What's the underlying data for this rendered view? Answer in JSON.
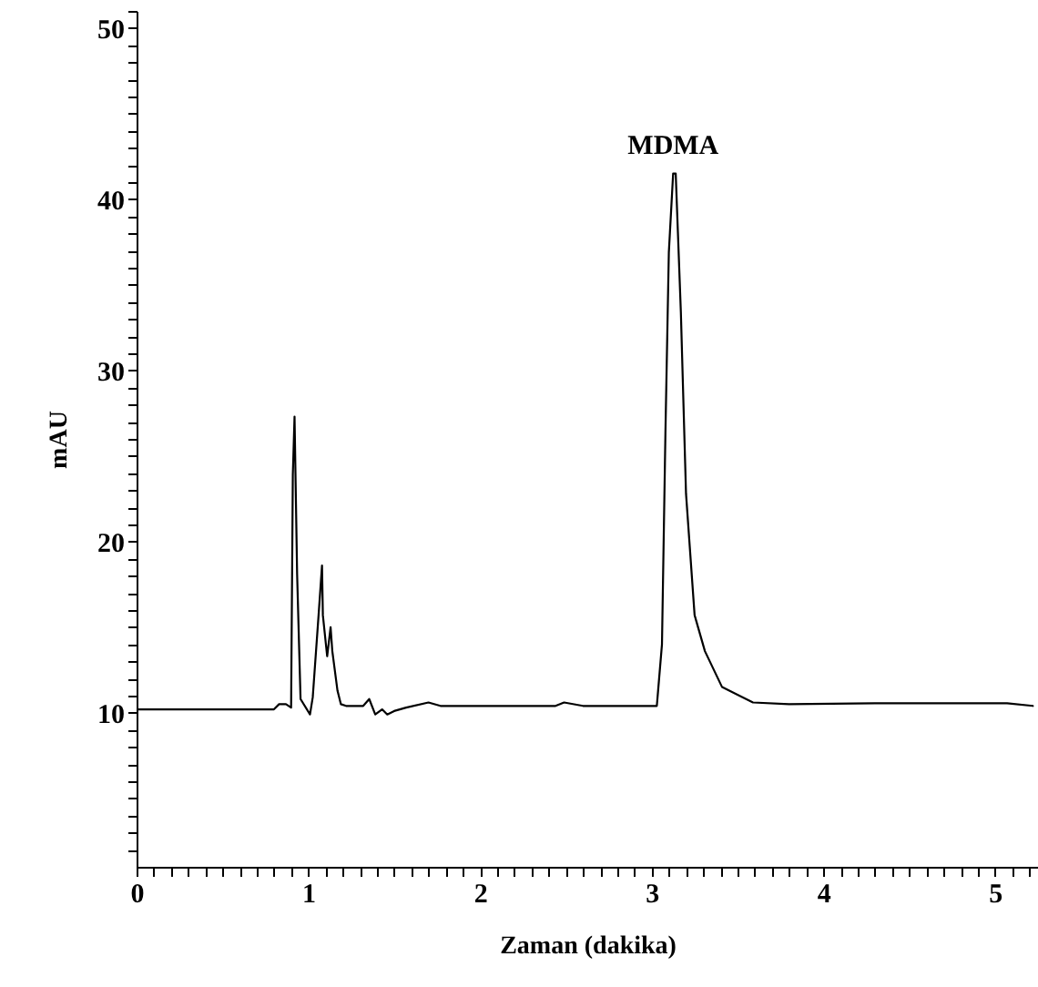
{
  "chart_data": {
    "type": "line",
    "xlabel": "Zaman (dakika)",
    "ylabel": "mAU",
    "x": [
      0,
      0.8,
      0.83,
      0.87,
      0.9,
      0.91,
      0.92,
      0.935,
      0.955,
      1.01,
      1.026,
      1.06,
      1.08,
      1.085,
      1.11,
      1.13,
      1.14,
      1.17,
      1.19,
      1.22,
      1.32,
      1.355,
      1.39,
      1.43,
      1.46,
      1.5,
      1.57,
      1.7,
      1.77,
      2.44,
      2.49,
      2.6,
      3.03,
      3.06,
      3.08,
      3.1,
      3.125,
      3.14,
      3.17,
      3.2,
      3.25,
      3.31,
      3.41,
      3.59,
      3.8,
      4.3,
      5.07,
      5.22
    ],
    "series": [
      {
        "color": "#000000",
        "values": [
          10.2,
          10.2,
          10.5,
          10.5,
          10.3,
          23.9,
          27.3,
          18.1,
          10.8,
          9.9,
          10.9,
          15.7,
          18.6,
          15.7,
          13.3,
          15.0,
          13.6,
          11.3,
          10.5,
          10.4,
          10.4,
          10.8,
          9.9,
          10.2,
          9.9,
          10.1,
          10.3,
          10.6,
          10.4,
          10.4,
          10.6,
          10.4,
          10.4,
          14.0,
          26.3,
          36.9,
          41.5,
          41.5,
          33.4,
          22.8,
          15.7,
          13.6,
          11.5,
          10.6,
          10.5,
          10.55,
          10.55,
          10.4
        ]
      }
    ],
    "annotations": [
      {
        "text": "MDMA",
        "x": 3.125,
        "y": 41.5
      }
    ],
    "xlim": [
      0,
      5.25
    ],
    "ylim": [
      1,
      51
    ],
    "xticks": [
      0,
      {
        "value": 0.1,
        "label": null
      },
      {
        "value": 0.2,
        "label": null
      },
      {
        "value": 0.3,
        "label": null
      },
      {
        "value": 0.4,
        "label": null
      },
      {
        "value": 0.5,
        "label": null
      },
      {
        "value": 0.6,
        "label": null
      },
      {
        "value": 0.7,
        "label": null
      },
      {
        "value": 0.8,
        "label": null
      },
      {
        "value": 0.9,
        "label": null
      },
      1,
      {
        "value": 1.1,
        "label": null
      },
      {
        "value": 1.2,
        "label": null
      },
      {
        "value": 1.3,
        "label": null
      },
      {
        "value": 1.4,
        "label": null
      },
      {
        "value": 1.5,
        "label": null
      },
      {
        "value": 1.6,
        "label": null
      },
      {
        "value": 1.7,
        "label": null
      },
      {
        "value": 1.8,
        "label": null
      },
      {
        "value": 1.9,
        "label": null
      },
      2,
      {
        "value": 2.1,
        "label": null
      },
      {
        "value": 2.2,
        "label": null
      },
      {
        "value": 2.3,
        "label": null
      },
      {
        "value": 2.4,
        "label": null
      },
      {
        "value": 2.5,
        "label": null
      },
      {
        "value": 2.6,
        "label": null
      },
      {
        "value": 2.7,
        "label": null
      },
      {
        "value": 2.8,
        "label": null
      },
      {
        "value": 2.9,
        "label": null
      },
      3,
      {
        "value": 3.1,
        "label": null
      },
      {
        "value": 3.2,
        "label": null
      },
      {
        "value": 3.3,
        "label": null
      },
      {
        "value": 3.4,
        "label": null
      },
      {
        "value": 3.5,
        "label": null
      },
      {
        "value": 3.6,
        "label": null
      },
      {
        "value": 3.7,
        "label": null
      },
      {
        "value": 3.8,
        "label": null
      },
      {
        "value": 3.9,
        "label": null
      },
      4,
      {
        "value": 4.1,
        "label": null
      },
      {
        "value": 4.2,
        "label": null
      },
      {
        "value": 4.3,
        "label": null
      },
      {
        "value": 4.4,
        "label": null
      },
      {
        "value": 4.5,
        "label": null
      },
      {
        "value": 4.6,
        "label": null
      },
      {
        "value": 4.7,
        "label": null
      },
      {
        "value": 4.8,
        "label": null
      },
      {
        "value": 4.9,
        "label": null
      },
      5,
      {
        "value": 5.1,
        "label": null
      },
      {
        "value": 5.2,
        "label": null
      }
    ],
    "yticks": [
      {
        "value": 2,
        "label": null
      },
      {
        "value": 3,
        "label": null
      },
      {
        "value": 4,
        "label": null
      },
      {
        "value": 5,
        "label": null
      },
      {
        "value": 6,
        "label": null
      },
      {
        "value": 7,
        "label": null
      },
      {
        "value": 8,
        "label": null
      },
      {
        "value": 9,
        "label": null
      },
      10,
      {
        "value": 11,
        "label": null
      },
      {
        "value": 12,
        "label": null
      },
      {
        "value": 13,
        "label": null
      },
      {
        "value": 14,
        "label": null
      },
      {
        "value": 15,
        "label": null
      },
      {
        "value": 16,
        "label": null
      },
      {
        "value": 17,
        "label": null
      },
      {
        "value": 18,
        "label": null
      },
      {
        "value": 19,
        "label": null
      },
      20,
      {
        "value": 21,
        "label": null
      },
      {
        "value": 22,
        "label": null
      },
      {
        "value": 23,
        "label": null
      },
      {
        "value": 24,
        "label": null
      },
      {
        "value": 25,
        "label": null
      },
      {
        "value": 26,
        "label": null
      },
      {
        "value": 27,
        "label": null
      },
      {
        "value": 28,
        "label": null
      },
      {
        "value": 29,
        "label": null
      },
      30,
      {
        "value": 31,
        "label": null
      },
      {
        "value": 32,
        "label": null
      },
      {
        "value": 33,
        "label": null
      },
      {
        "value": 34,
        "label": null
      },
      {
        "value": 35,
        "label": null
      },
      {
        "value": 36,
        "label": null
      },
      {
        "value": 37,
        "label": null
      },
      {
        "value": 38,
        "label": null
      },
      {
        "value": 39,
        "label": null
      },
      40,
      {
        "value": 41,
        "label": null
      },
      {
        "value": 42,
        "label": null
      },
      {
        "value": 43,
        "label": null
      },
      {
        "value": 44,
        "label": null
      },
      {
        "value": 45,
        "label": null
      },
      {
        "value": 46,
        "label": null
      },
      {
        "value": 47,
        "label": null
      },
      {
        "value": 48,
        "label": null
      },
      {
        "value": 49,
        "label": null
      },
      50,
      {
        "value": 51,
        "label": null
      }
    ],
    "grid": false,
    "marker": "none",
    "line_style": "solid"
  }
}
